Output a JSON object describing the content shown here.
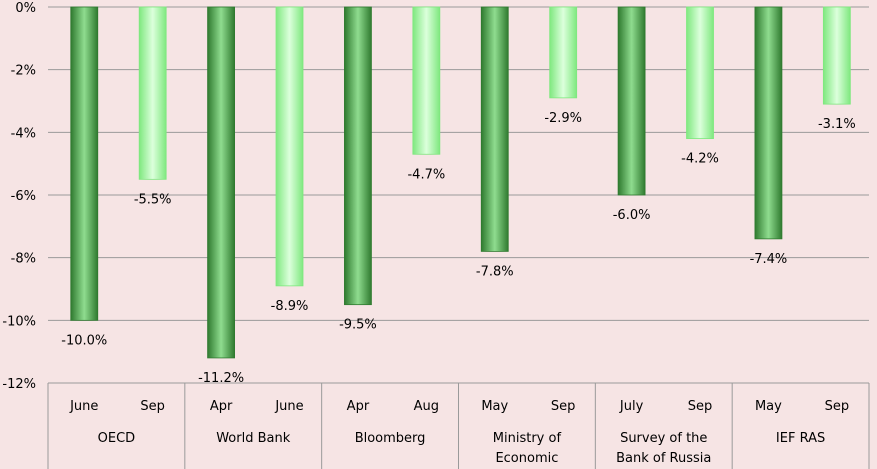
{
  "chart_data": {
    "type": "bar",
    "title": "",
    "xlabel": "",
    "ylabel": "",
    "ylim": [
      -12,
      0
    ],
    "yticks": [
      0,
      -2,
      -4,
      -6,
      -8,
      -10,
      -12
    ],
    "ytick_labels": [
      "0%",
      "-2%",
      "-4%",
      "-6%",
      "-8%",
      "-10%",
      "-12%"
    ],
    "grid": true,
    "legend": "none",
    "groups": [
      {
        "name": "OECD",
        "label_lines": [
          "OECD"
        ],
        "bars": [
          {
            "period": "June",
            "value": -10.0,
            "label": "-10.0%",
            "style": "early"
          },
          {
            "period": "Sep",
            "value": -5.5,
            "label": "-5.5%",
            "style": "late"
          }
        ]
      },
      {
        "name": "World Bank",
        "label_lines": [
          "World Bank"
        ],
        "bars": [
          {
            "period": "Apr",
            "value": -11.2,
            "label": "-11.2%",
            "style": "early"
          },
          {
            "period": "June",
            "value": -8.9,
            "label": "-8.9%",
            "style": "late"
          }
        ]
      },
      {
        "name": "Bloomberg",
        "label_lines": [
          "Bloomberg"
        ],
        "bars": [
          {
            "period": "Apr",
            "value": -9.5,
            "label": "-9.5%",
            "style": "early"
          },
          {
            "period": "Aug",
            "value": -4.7,
            "label": "-4.7%",
            "style": "late"
          }
        ]
      },
      {
        "name": "Ministry of Economic",
        "label_lines": [
          "Ministry of",
          "Economic"
        ],
        "bars": [
          {
            "period": "May",
            "value": -7.8,
            "label": "-7.8%",
            "style": "early"
          },
          {
            "period": "Sep",
            "value": -2.9,
            "label": "-2.9%",
            "style": "late"
          }
        ]
      },
      {
        "name": "Survey of the Bank of Russia",
        "label_lines": [
          "Survey of the",
          "Bank of Russia"
        ],
        "bars": [
          {
            "period": "July",
            "value": -6.0,
            "label": "-6.0%",
            "style": "early"
          },
          {
            "period": "Sep",
            "value": -4.2,
            "label": "-4.2%",
            "style": "late"
          }
        ]
      },
      {
        "name": "IEF RAS",
        "label_lines": [
          "IEF RAS"
        ],
        "bars": [
          {
            "period": "May",
            "value": -7.4,
            "label": "-7.4%",
            "style": "early"
          },
          {
            "period": "Sep",
            "value": -3.1,
            "label": "-3.1%",
            "style": "late"
          }
        ]
      }
    ],
    "colors": {
      "early_dark": "#2f7a2f",
      "early_light": "#8fdc8f",
      "late_dark": "#7fe87f",
      "late_light": "#dcffdc",
      "grid": "#9a9a9a",
      "text": "#000000",
      "background": "#f6e4e4"
    }
  }
}
